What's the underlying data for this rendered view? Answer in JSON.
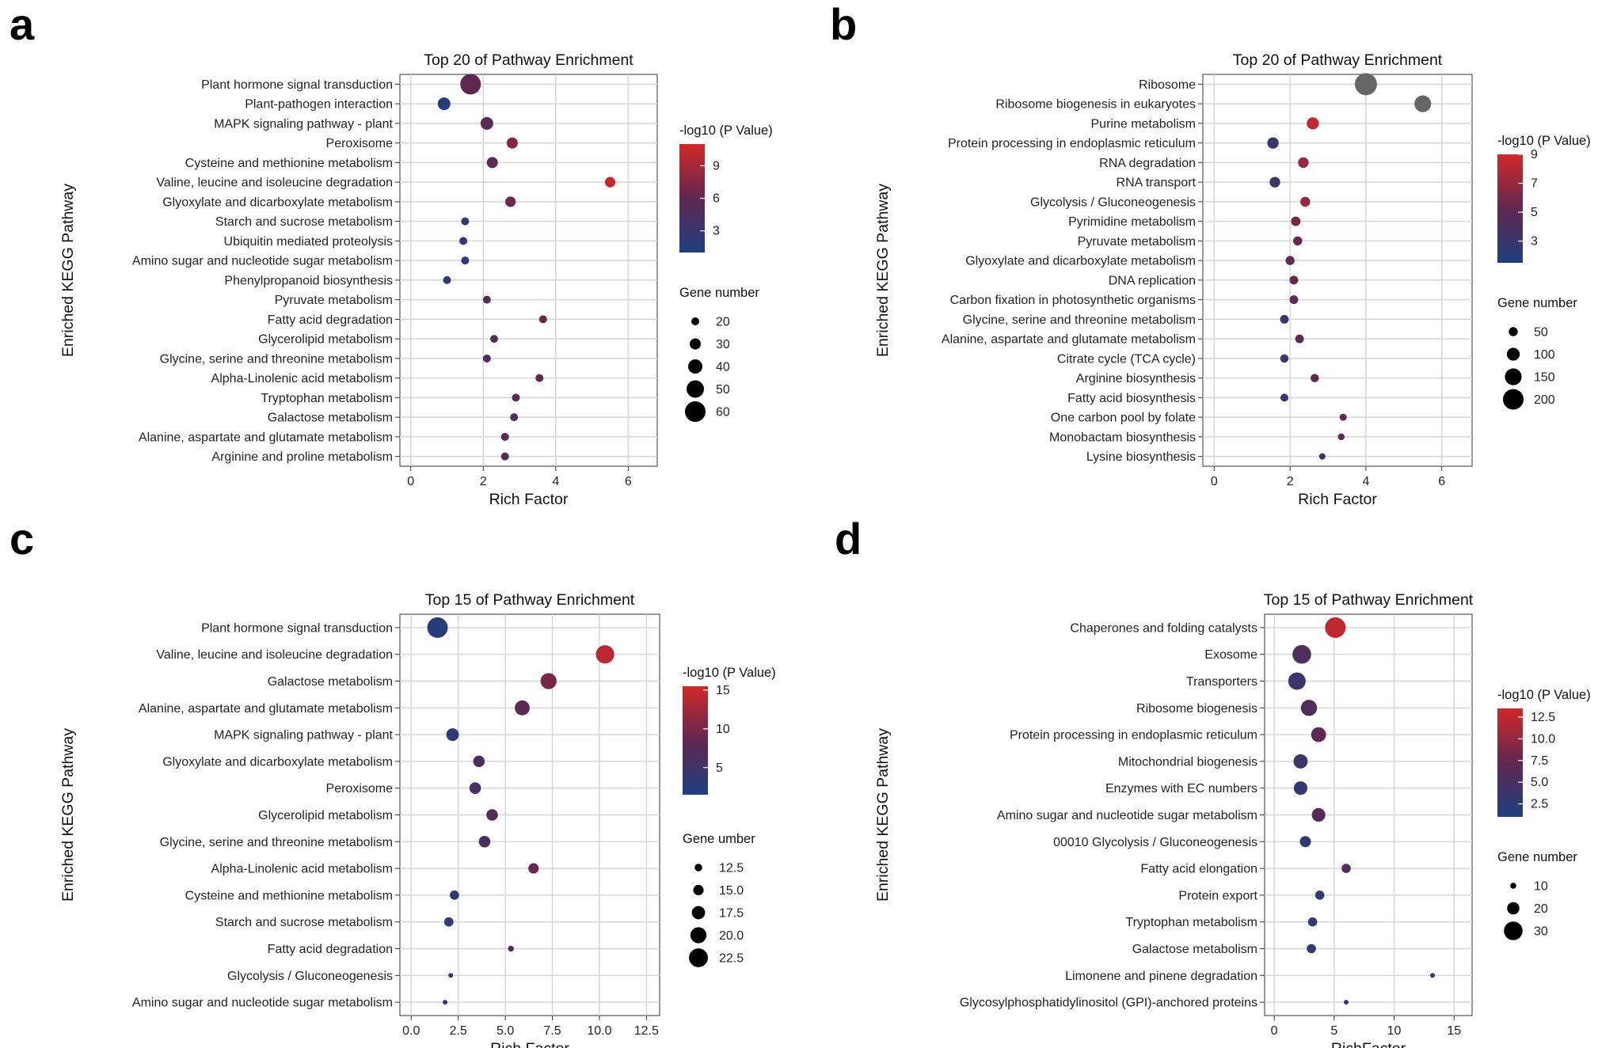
{
  "chart_data": [
    {
      "panel_label": "a",
      "type": "scatter",
      "title": "Top 20 of Pathway Enrichment",
      "xlabel": "Rich Factor",
      "ylabel": "Enriched KEGG Pathway",
      "xlim": [
        -0.3,
        6.8
      ],
      "xticks": [
        0,
        2,
        4,
        6
      ],
      "xtick_labels": [
        "0",
        "2",
        "4",
        "6"
      ],
      "color_title": "-log10 (P Value)",
      "color_range": [
        1,
        11
      ],
      "color_ticks": [
        3,
        6,
        9
      ],
      "color_tick_labels": [
        "3",
        "6",
        "9"
      ],
      "size_title": "Gene number",
      "size_legend": [
        20,
        30,
        40,
        50,
        60
      ],
      "size_legend_labels": [
        "20",
        "30",
        "40",
        "50",
        "60"
      ],
      "pathways": [
        "Plant hormone signal transduction",
        "Plant-pathogen interaction",
        "MAPK signaling pathway - plant",
        "Peroxisome",
        "Cysteine and methionine metabolism",
        "Valine, leucine and isoleucine degradation",
        "Glyoxylate and dicarboxylate metabolism",
        "Starch and sucrose metabolism",
        "Ubiquitin mediated proteolysis",
        "Amino sugar and nucleotide sugar metabolism",
        "Phenylpropanoid biosynthesis",
        "Pyruvate metabolism",
        "Fatty acid degradation",
        "Glycerolipid metabolism",
        "Glycine, serine and threonine metabolism",
        "Alpha-Linolenic acid metabolism",
        "Tryptophan metabolism",
        "Galactose metabolism",
        "Alanine, aspartate and glutamate metabolism",
        "Arginine and proline metabolism"
      ],
      "rich_factor": [
        1.65,
        0.92,
        2.1,
        2.8,
        2.25,
        5.5,
        2.75,
        1.5,
        1.45,
        1.5,
        1.0,
        2.1,
        3.65,
        2.3,
        2.1,
        3.55,
        2.9,
        2.85,
        2.6,
        2.6
      ],
      "neg_log10_p": [
        6.0,
        1.5,
        5.5,
        7.5,
        5.8,
        10.5,
        6.5,
        2.5,
        2.5,
        2.3,
        1.8,
        5.0,
        6.5,
        5.0,
        4.5,
        6.0,
        5.5,
        5.0,
        5.5,
        5.0
      ],
      "gene_number": [
        65,
        35,
        35,
        30,
        30,
        28,
        28,
        20,
        20,
        20,
        18,
        15,
        12,
        12,
        12,
        10,
        10,
        10,
        10,
        10
      ]
    },
    {
      "panel_label": "b",
      "type": "scatter",
      "title": "Top 20 of Pathway Enrichment",
      "xlabel": "Rich Factor",
      "ylabel": "Enriched KEGG Pathway",
      "xlim": [
        -0.3,
        6.8
      ],
      "xticks": [
        0,
        2,
        4,
        6
      ],
      "xtick_labels": [
        "0",
        "2",
        "4",
        "6"
      ],
      "color_title": "-log10 (P Value)",
      "color_range": [
        1.5,
        9
      ],
      "color_ticks": [
        3,
        5,
        7,
        9
      ],
      "color_tick_labels": [
        "3",
        "5",
        "7",
        "9"
      ],
      "out_of_range_color": "#666666",
      "size_title": "Gene number",
      "size_legend": [
        50,
        100,
        150,
        200
      ],
      "size_legend_labels": [
        "50",
        "100",
        "150",
        "200"
      ],
      "pathways": [
        "Ribosome",
        "Ribosome biogenesis in eukaryotes",
        "Purine metabolism",
        "Protein processing in endoplasmic reticulum",
        "RNA degradation",
        "RNA transport",
        "Glycolysis / Gluconeogenesis",
        "Pyrimidine metabolism",
        "Pyruvate metabolism",
        "Glyoxylate and dicarboxylate metabolism",
        "DNA replication",
        "Carbon fixation in photosynthetic organisms",
        "Glycine, serine and threonine metabolism",
        "Alanine, aspartate and glutamate metabolism",
        "Citrate cycle (TCA cycle)",
        "Arginine biosynthesis",
        "Fatty acid biosynthesis",
        "One carbon pool by folate",
        "Monobactam biosynthesis",
        "Lysine biosynthesis"
      ],
      "rich_factor": [
        4.0,
        5.5,
        2.6,
        1.55,
        2.35,
        1.6,
        2.4,
        2.15,
        2.2,
        2.0,
        2.1,
        2.1,
        1.85,
        2.25,
        1.85,
        2.65,
        1.85,
        3.4,
        3.35,
        2.85
      ],
      "neg_log10_p": [
        40,
        20,
        8.5,
        3.0,
        7.0,
        3.5,
        7.0,
        6.0,
        5.5,
        5.0,
        5.5,
        5.0,
        3.5,
        5.0,
        3.0,
        5.0,
        3.0,
        5.0,
        5.0,
        3.0
      ],
      "gene_number": [
        220,
        150,
        90,
        80,
        70,
        70,
        60,
        55,
        50,
        50,
        45,
        45,
        45,
        45,
        40,
        40,
        35,
        25,
        20,
        15
      ]
    },
    {
      "panel_label": "c",
      "type": "scatter",
      "title": "Top 15 of Pathway Enrichment",
      "xlabel": "Rich Factor",
      "ylabel": "Enriched KEGG Pathway",
      "xlim": [
        -0.6,
        13.2
      ],
      "xticks": [
        0,
        2.5,
        5,
        7.5,
        10,
        12.5
      ],
      "xtick_labels": [
        "0.0",
        "2.5",
        "5.0",
        "7.5",
        "10.0",
        "12.5"
      ],
      "color_title": "-log10 (P Value)",
      "color_range": [
        1.5,
        15.5
      ],
      "color_ticks": [
        5,
        10,
        15
      ],
      "color_tick_labels": [
        "5",
        "10",
        "15"
      ],
      "size_title": "Gene umber",
      "size_legend": [
        12.5,
        15,
        17.5,
        20,
        22.5
      ],
      "size_legend_labels": [
        "12.5",
        "15.0",
        "17.5",
        "20.0",
        "22.5"
      ],
      "pathways": [
        "Plant hormone signal transduction",
        "Valine, leucine and isoleucine degradation",
        "Galactose metabolism",
        "Alanine, aspartate and glutamate metabolism",
        "MAPK signaling pathway - plant",
        "Glyoxylate and dicarboxylate metabolism",
        "Peroxisome",
        "Glycerolipid metabolism",
        "Glycine, serine and threonine metabolism",
        "Alpha-Linolenic acid metabolism",
        "Cysteine and methionine metabolism",
        "Starch and sucrose metabolism",
        "Fatty acid degradation",
        "Glycolysis / Gluconeogenesis",
        "Amino sugar and nucleotide sugar metabolism"
      ],
      "rich_factor": [
        1.4,
        10.3,
        7.3,
        5.9,
        2.2,
        3.6,
        3.4,
        4.3,
        3.9,
        6.5,
        2.3,
        2.0,
        5.3,
        2.1,
        1.8
      ],
      "neg_log10_p": [
        2.5,
        14.0,
        10.0,
        8.0,
        3.0,
        6.5,
        6.0,
        7.0,
        6.0,
        9.0,
        3.0,
        3.0,
        7.0,
        3.0,
        2.5
      ],
      "gene_number": [
        24,
        22,
        20,
        19,
        17,
        16,
        16,
        16,
        16,
        15,
        14,
        14,
        11,
        10,
        10
      ]
    },
    {
      "panel_label": "d",
      "type": "scatter",
      "title": "Top 15 of Pathway Enrichment",
      "xlabel": "RichFactor",
      "ylabel": "Enriched KEGG Pathway",
      "xlim": [
        -0.8,
        16.5
      ],
      "xticks": [
        0,
        5,
        10,
        15
      ],
      "xtick_labels": [
        "0",
        "5",
        "10",
        "15"
      ],
      "color_title": "-log10 (P Value)",
      "color_range": [
        1,
        13.5
      ],
      "color_ticks": [
        2.5,
        5,
        7.5,
        10,
        12.5
      ],
      "color_tick_labels": [
        "2.5",
        "5.0",
        "7.5",
        "10.0",
        "12.5"
      ],
      "size_title": "Gene number",
      "size_legend": [
        10,
        20,
        30
      ],
      "size_legend_labels": [
        "10",
        "20",
        "30"
      ],
      "pathways": [
        "Chaperones and folding catalysts",
        "Exosome",
        "Transporters",
        "Ribosome biogenesis",
        "Protein processing in endoplasmic reticulum",
        "Mitochondrial biogenesis",
        "Enzymes with EC numbers",
        "Amino sugar and nucleotide sugar metabolism",
        "00010 Glycolysis / Gluconeogenesis",
        "Fatty acid elongation",
        "Protein export",
        "Tryptophan metabolism",
        "Galactose metabolism",
        "Limonene and pinene degradation",
        "Glycosylphosphatidylinositol (GPI)-anchored proteins"
      ],
      "rich_factor": [
        5.1,
        2.3,
        1.9,
        2.9,
        3.7,
        2.2,
        2.2,
        3.7,
        2.6,
        6.0,
        3.8,
        3.2,
        3.1,
        13.2,
        6.0
      ],
      "neg_log10_p": [
        12.5,
        5.5,
        3.5,
        6.0,
        7.0,
        3.5,
        3.0,
        6.5,
        2.5,
        6.0,
        3.0,
        2.5,
        2.5,
        2.5,
        2.5
      ],
      "gene_number": [
        33,
        30,
        28,
        26,
        24,
        23,
        22,
        22,
        18,
        15,
        15,
        15,
        15,
        8,
        8
      ]
    }
  ]
}
